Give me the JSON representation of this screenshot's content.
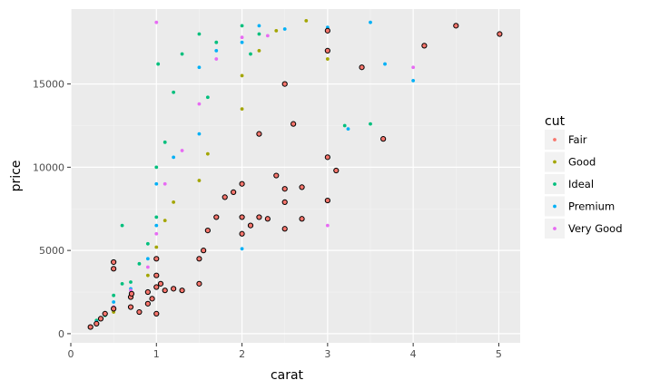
{
  "chart_data": {
    "type": "scatter",
    "xlabel": "carat",
    "ylabel": "price",
    "xlim": [
      0,
      5.25
    ],
    "ylim": [
      -550,
      19500
    ],
    "x_ticks": [
      0,
      1,
      2,
      3,
      4,
      5
    ],
    "y_ticks": [
      0,
      5000,
      10000,
      15000
    ],
    "y_tick_labels": [
      "0",
      "5000",
      "10000",
      "15000"
    ],
    "grid": true,
    "legend": {
      "title": "cut",
      "placement": "right",
      "entries": [
        "Fair",
        "Good",
        "Ideal",
        "Premium",
        "Very Good"
      ]
    },
    "colors": {
      "Fair": "#f8766d",
      "Good": "#a3a500",
      "Ideal": "#00bf7d",
      "Premium": "#00b0f6",
      "Very Good": "#e76bf3"
    },
    "series": [
      {
        "name": "Fair",
        "outlined": true,
        "points": [
          [
            0.23,
            400
          ],
          [
            0.3,
            600
          ],
          [
            0.35,
            900
          ],
          [
            0.4,
            1200
          ],
          [
            0.5,
            1500
          ],
          [
            0.5,
            3900
          ],
          [
            0.5,
            4300
          ],
          [
            0.7,
            1600
          ],
          [
            0.7,
            2200
          ],
          [
            0.71,
            2400
          ],
          [
            0.8,
            1300
          ],
          [
            0.9,
            1800
          ],
          [
            0.9,
            2500
          ],
          [
            0.95,
            2100
          ],
          [
            1.0,
            1200
          ],
          [
            1.0,
            2800
          ],
          [
            1.0,
            3500
          ],
          [
            1.0,
            4500
          ],
          [
            1.05,
            3000
          ],
          [
            1.1,
            2600
          ],
          [
            1.2,
            2700
          ],
          [
            1.3,
            2600
          ],
          [
            1.5,
            3000
          ],
          [
            1.5,
            4500
          ],
          [
            1.55,
            5000
          ],
          [
            1.6,
            6200
          ],
          [
            1.7,
            7000
          ],
          [
            1.8,
            8200
          ],
          [
            1.9,
            8500
          ],
          [
            2.0,
            9000
          ],
          [
            2.0,
            7000
          ],
          [
            2.0,
            6000
          ],
          [
            2.1,
            6500
          ],
          [
            2.2,
            7000
          ],
          [
            2.2,
            12000
          ],
          [
            2.3,
            6900
          ],
          [
            2.4,
            9500
          ],
          [
            2.5,
            6300
          ],
          [
            2.5,
            7900
          ],
          [
            2.5,
            8700
          ],
          [
            2.5,
            15000
          ],
          [
            2.6,
            12600
          ],
          [
            2.7,
            6900
          ],
          [
            2.7,
            8800
          ],
          [
            3.0,
            8000
          ],
          [
            3.0,
            10600
          ],
          [
            3.0,
            17000
          ],
          [
            3.0,
            18200
          ],
          [
            3.1,
            9800
          ],
          [
            3.4,
            16000
          ],
          [
            3.65,
            11700
          ],
          [
            4.13,
            17300
          ],
          [
            4.5,
            18500
          ],
          [
            5.01,
            18000
          ]
        ]
      },
      {
        "name": "Good",
        "outlined": false,
        "points": [
          [
            0.3,
            700
          ],
          [
            0.5,
            1300
          ],
          [
            0.7,
            2300
          ],
          [
            0.9,
            3500
          ],
          [
            1.0,
            5200
          ],
          [
            1.1,
            6800
          ],
          [
            1.2,
            7900
          ],
          [
            1.5,
            9200
          ],
          [
            1.6,
            10800
          ],
          [
            2.0,
            13500
          ],
          [
            2.0,
            15500
          ],
          [
            2.2,
            17000
          ],
          [
            2.4,
            18200
          ],
          [
            2.75,
            18800
          ],
          [
            3.0,
            16500
          ]
        ]
      },
      {
        "name": "Ideal",
        "outlined": false,
        "points": [
          [
            0.3,
            800
          ],
          [
            0.4,
            1100
          ],
          [
            0.5,
            2300
          ],
          [
            0.6,
            3000
          ],
          [
            0.6,
            6500
          ],
          [
            0.7,
            3100
          ],
          [
            0.8,
            4200
          ],
          [
            0.9,
            5400
          ],
          [
            1.0,
            7000
          ],
          [
            1.0,
            10000
          ],
          [
            1.02,
            16200
          ],
          [
            1.1,
            11500
          ],
          [
            1.2,
            14500
          ],
          [
            1.3,
            16800
          ],
          [
            1.5,
            18000
          ],
          [
            1.6,
            14200
          ],
          [
            1.7,
            17500
          ],
          [
            2.0,
            18500
          ],
          [
            2.1,
            16800
          ],
          [
            2.2,
            18000
          ],
          [
            3.2,
            12500
          ],
          [
            3.5,
            12600
          ]
        ]
      },
      {
        "name": "Premium",
        "outlined": false,
        "points": [
          [
            0.3,
            700
          ],
          [
            0.5,
            1900
          ],
          [
            0.7,
            2700
          ],
          [
            0.9,
            4500
          ],
          [
            1.0,
            6500
          ],
          [
            1.0,
            9000
          ],
          [
            1.2,
            10600
          ],
          [
            1.5,
            12000
          ],
          [
            1.5,
            16000
          ],
          [
            1.7,
            17000
          ],
          [
            2.0,
            5100
          ],
          [
            2.0,
            17500
          ],
          [
            2.2,
            18500
          ],
          [
            2.5,
            18300
          ],
          [
            3.0,
            18400
          ],
          [
            3.24,
            12300
          ],
          [
            3.5,
            18700
          ],
          [
            3.67,
            16200
          ],
          [
            4.0,
            15200
          ]
        ]
      },
      {
        "name": "Very Good",
        "outlined": false,
        "points": [
          [
            0.3,
            650
          ],
          [
            0.5,
            1600
          ],
          [
            0.7,
            2600
          ],
          [
            0.9,
            4000
          ],
          [
            1.0,
            6000
          ],
          [
            1.0,
            18700
          ],
          [
            1.1,
            9000
          ],
          [
            1.3,
            11000
          ],
          [
            1.5,
            13800
          ],
          [
            1.7,
            16500
          ],
          [
            2.0,
            17800
          ],
          [
            2.3,
            17900
          ],
          [
            2.5,
            15000
          ],
          [
            3.0,
            6500
          ],
          [
            4.0,
            16000
          ]
        ]
      }
    ]
  }
}
